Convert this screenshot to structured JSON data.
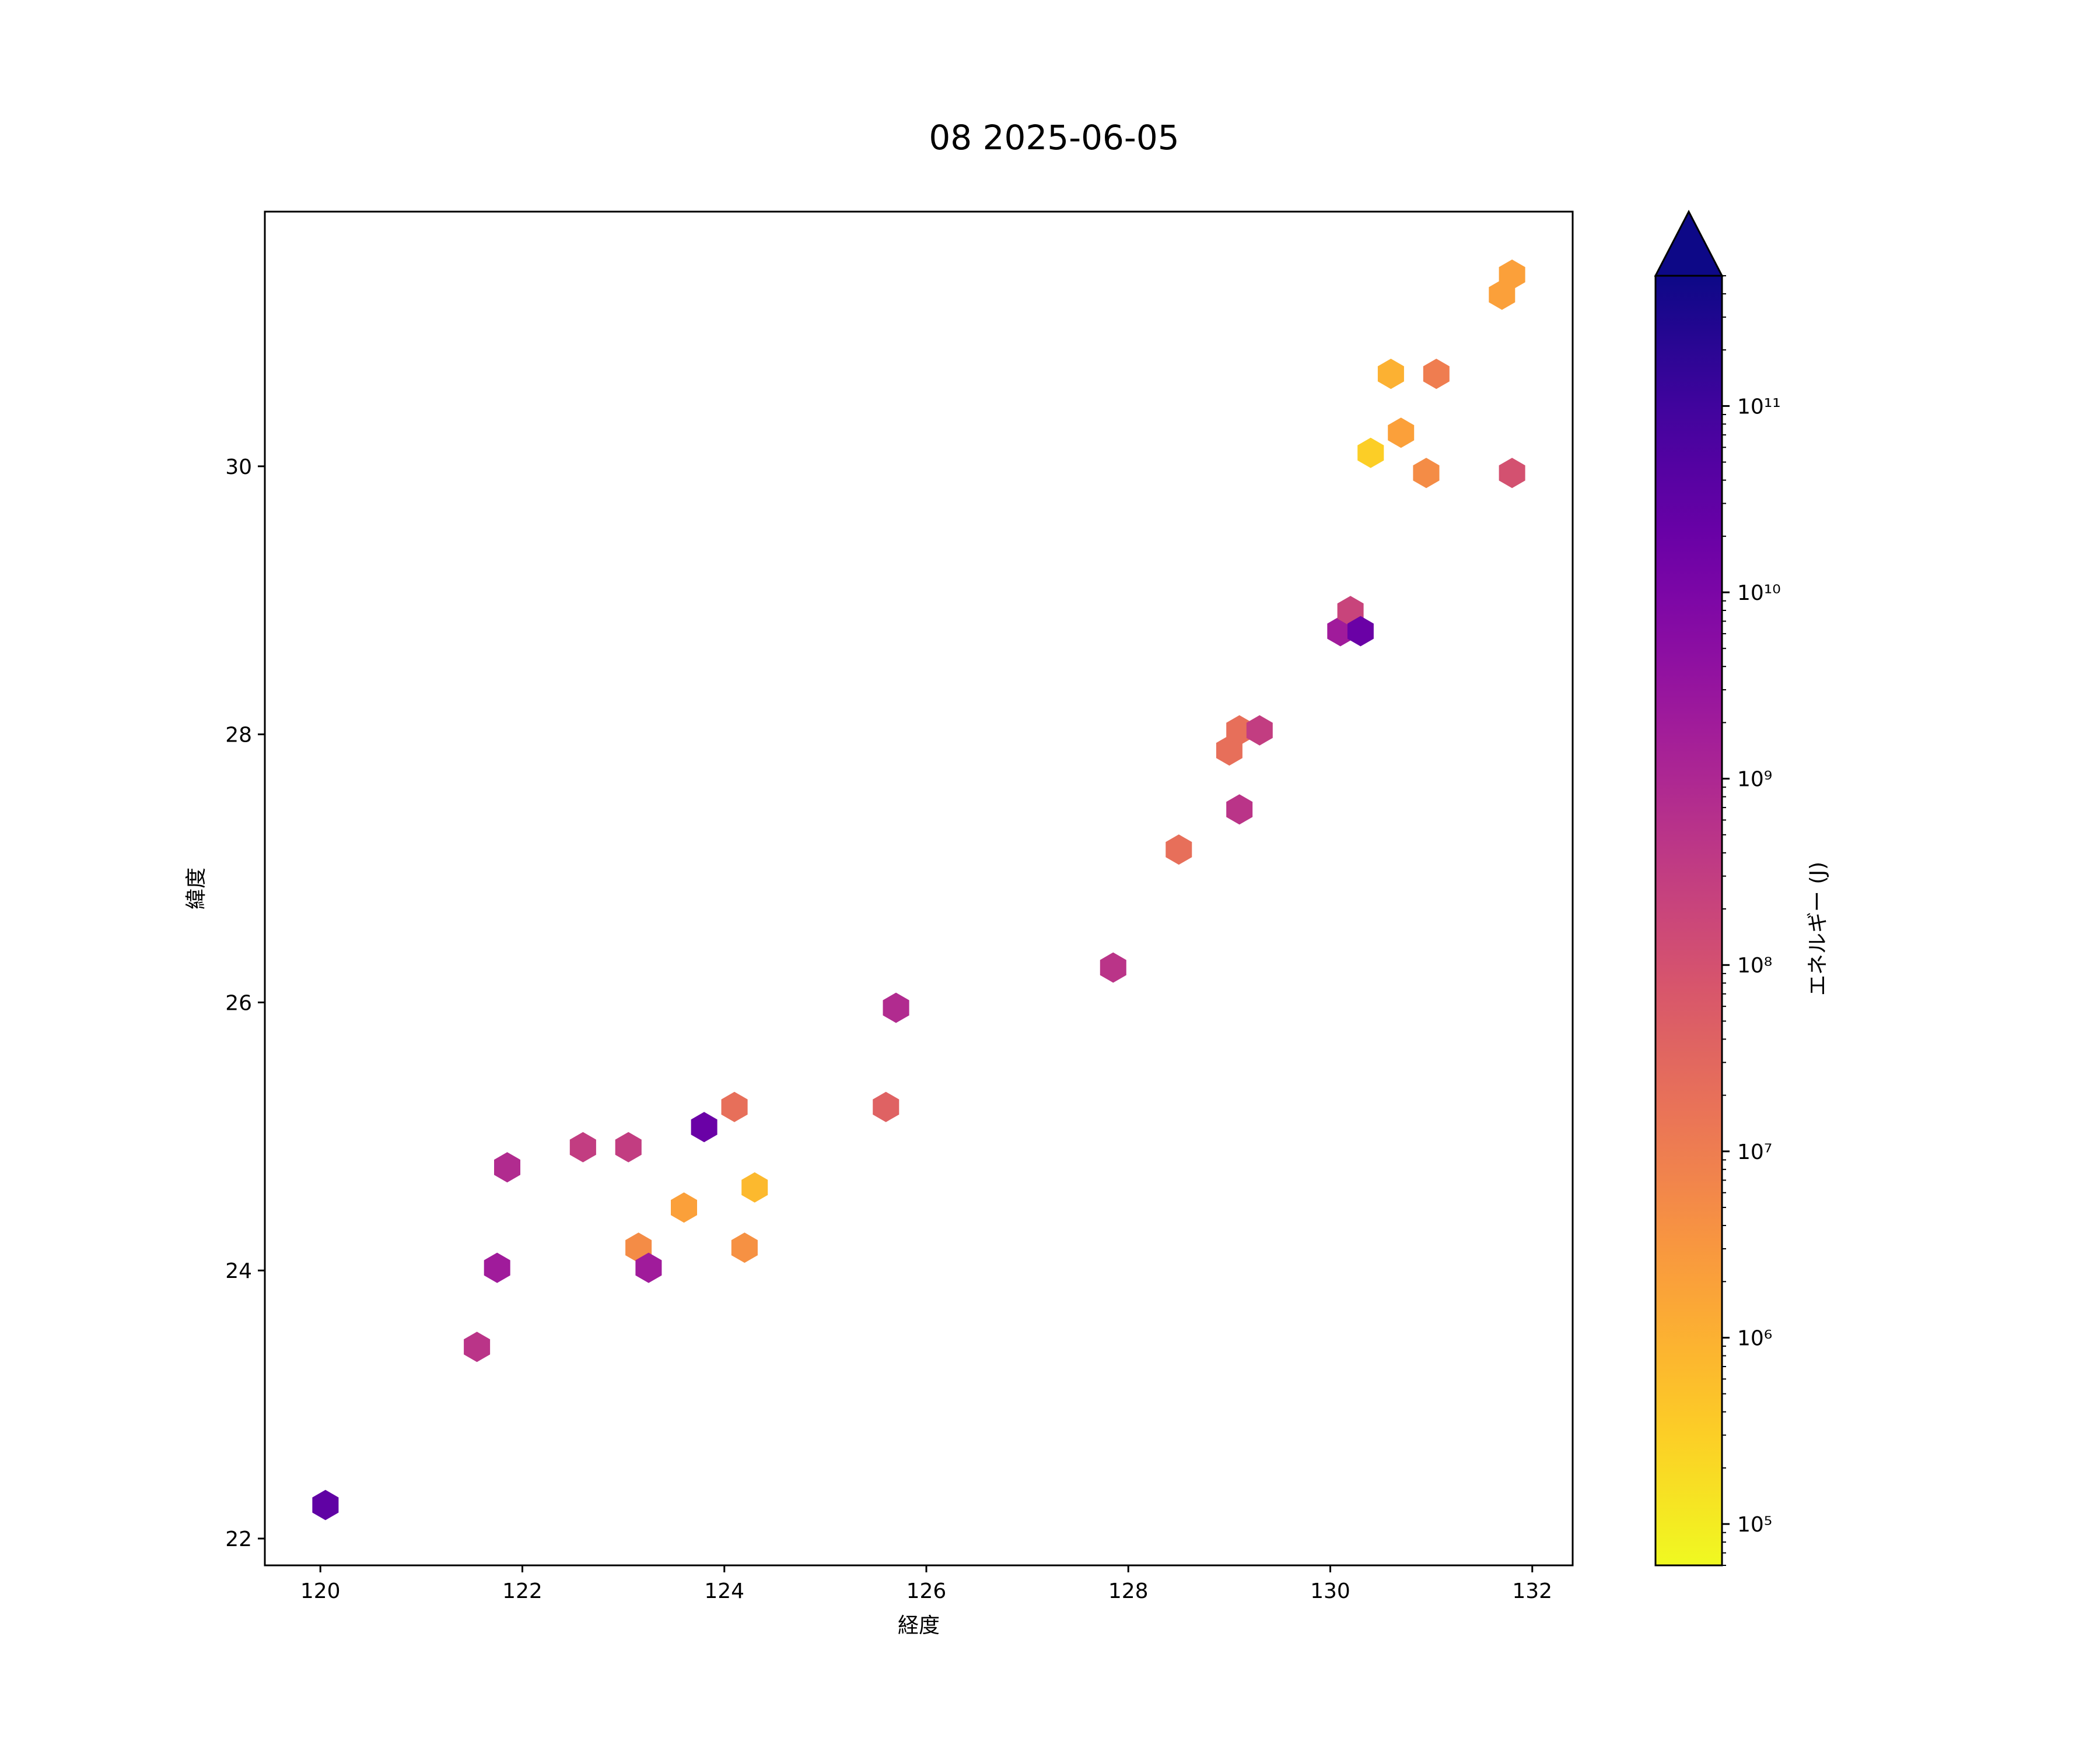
{
  "chart_data": {
    "type": "hexbin",
    "title": "08 2025-06-05",
    "xlabel": "経度",
    "ylabel": "緯度",
    "xlim": [
      119.45,
      132.4
    ],
    "ylim": [
      21.8,
      31.9
    ],
    "xticks": [
      120,
      122,
      124,
      126,
      128,
      130,
      132
    ],
    "yticks": [
      22,
      24,
      26,
      28,
      30
    ],
    "grid": false,
    "colorbar": {
      "label": "エネルギー (J)",
      "scale": "log",
      "range": [
        60000,
        500000000000
      ],
      "extend": "max",
      "colormap": "plasma_r",
      "over_color": "#0d0887",
      "ticks": [
        {
          "exp": 5,
          "label": "10⁵"
        },
        {
          "exp": 6,
          "label": "10⁶"
        },
        {
          "exp": 7,
          "label": "10⁷"
        },
        {
          "exp": 8,
          "label": "10⁸"
        },
        {
          "exp": 9,
          "label": "10⁹"
        },
        {
          "exp": 10,
          "label": "10¹⁰"
        },
        {
          "exp": 11,
          "label": "10¹¹"
        }
      ]
    },
    "points": [
      {
        "x": 120.05,
        "y": 22.25,
        "energy": 30000000000
      },
      {
        "x": 121.55,
        "y": 23.43,
        "energy": 500000000
      },
      {
        "x": 121.75,
        "y": 24.02,
        "energy": 2000000000
      },
      {
        "x": 121.85,
        "y": 24.77,
        "energy": 800000000
      },
      {
        "x": 122.6,
        "y": 24.92,
        "energy": 300000000
      },
      {
        "x": 123.05,
        "y": 24.92,
        "energy": 300000000
      },
      {
        "x": 123.15,
        "y": 24.17,
        "energy": 5000000
      },
      {
        "x": 123.25,
        "y": 24.02,
        "energy": 2000000000
      },
      {
        "x": 123.6,
        "y": 24.47,
        "energy": 2000000
      },
      {
        "x": 123.8,
        "y": 25.07,
        "energy": 20000000000
      },
      {
        "x": 124.1,
        "y": 25.22,
        "energy": 20000000
      },
      {
        "x": 124.2,
        "y": 24.17,
        "energy": 4000000
      },
      {
        "x": 124.3,
        "y": 24.62,
        "energy": 700000
      },
      {
        "x": 125.6,
        "y": 25.22,
        "energy": 40000000
      },
      {
        "x": 125.7,
        "y": 25.96,
        "energy": 800000000
      },
      {
        "x": 127.85,
        "y": 26.26,
        "energy": 500000000
      },
      {
        "x": 128.5,
        "y": 27.14,
        "energy": 20000000
      },
      {
        "x": 129.0,
        "y": 27.88,
        "energy": 20000000
      },
      {
        "x": 129.1,
        "y": 28.03,
        "energy": 20000000
      },
      {
        "x": 129.1,
        "y": 27.44,
        "energy": 500000000
      },
      {
        "x": 129.3,
        "y": 28.03,
        "energy": 300000000
      },
      {
        "x": 130.1,
        "y": 28.77,
        "energy": 2000000000
      },
      {
        "x": 130.2,
        "y": 28.92,
        "energy": 200000000
      },
      {
        "x": 130.3,
        "y": 28.77,
        "energy": 20000000000
      },
      {
        "x": 130.4,
        "y": 30.1,
        "energy": 300000
      },
      {
        "x": 130.6,
        "y": 30.69,
        "energy": 1000000
      },
      {
        "x": 130.7,
        "y": 30.25,
        "energy": 2000000
      },
      {
        "x": 130.95,
        "y": 29.95,
        "energy": 5000000
      },
      {
        "x": 131.05,
        "y": 30.69,
        "energy": 10000000
      },
      {
        "x": 131.7,
        "y": 31.28,
        "energy": 2000000
      },
      {
        "x": 131.8,
        "y": 31.43,
        "energy": 2000000
      },
      {
        "x": 131.8,
        "y": 29.95,
        "energy": 100000000
      }
    ]
  }
}
